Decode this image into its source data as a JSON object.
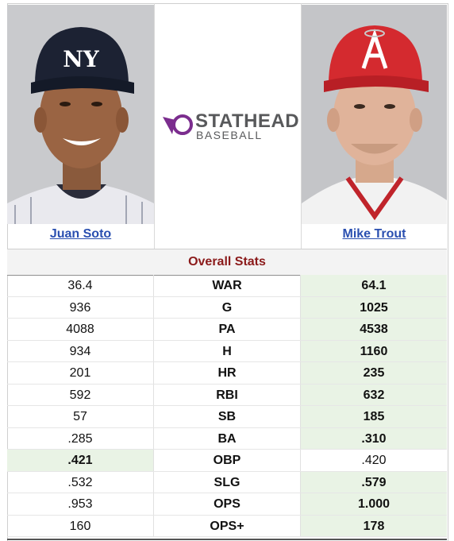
{
  "players": {
    "left": {
      "name": "Juan Soto",
      "photo_icon": "juan-soto-headshot"
    },
    "right": {
      "name": "Mike Trout",
      "photo_icon": "mike-trout-headshot"
    }
  },
  "logo": {
    "line1": "STATHEAD",
    "line2": "BASEBALL",
    "icon": "stathead-logo-icon"
  },
  "section_title": "Overall Stats",
  "colors": {
    "win_bg": "#e9f3e5",
    "title_color": "#8b1a1a",
    "link_color": "#2a4fb0"
  },
  "rows": [
    {
      "left": "36.4",
      "stat": "WAR",
      "right": "64.1",
      "winner": "right"
    },
    {
      "left": "936",
      "stat": "G",
      "right": "1025",
      "winner": "right"
    },
    {
      "left": "4088",
      "stat": "PA",
      "right": "4538",
      "winner": "right"
    },
    {
      "left": "934",
      "stat": "H",
      "right": "1160",
      "winner": "right"
    },
    {
      "left": "201",
      "stat": "HR",
      "right": "235",
      "winner": "right"
    },
    {
      "left": "592",
      "stat": "RBI",
      "right": "632",
      "winner": "right"
    },
    {
      "left": "57",
      "stat": "SB",
      "right": "185",
      "winner": "right"
    },
    {
      "left": ".285",
      "stat": "BA",
      "right": ".310",
      "winner": "right"
    },
    {
      "left": ".421",
      "stat": "OBP",
      "right": ".420",
      "winner": "left"
    },
    {
      "left": ".532",
      "stat": "SLG",
      "right": ".579",
      "winner": "right"
    },
    {
      "left": ".953",
      "stat": "OPS",
      "right": "1.000",
      "winner": "right"
    },
    {
      "left": "160",
      "stat": "OPS+",
      "right": "178",
      "winner": "right"
    }
  ]
}
